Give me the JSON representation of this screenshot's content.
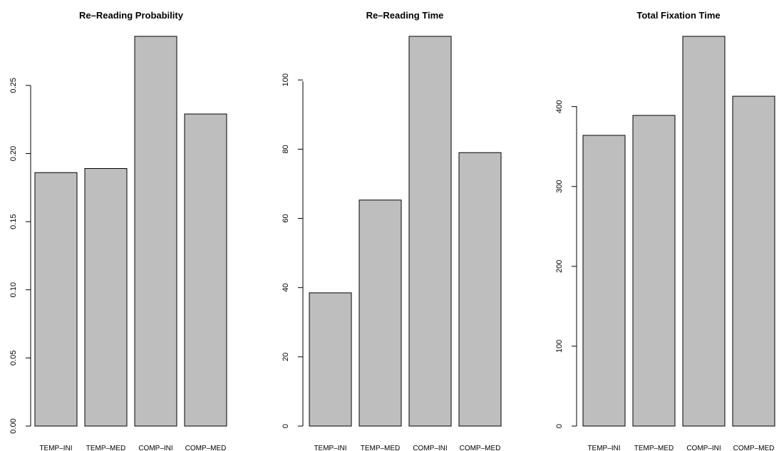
{
  "colors": {
    "bar_fill": "#bebebe",
    "bar_stroke": "#000000",
    "background": "#ffffff"
  },
  "chart_data": [
    {
      "type": "bar",
      "title": "Re–Reading Probability",
      "categories": [
        "TEMP–INI",
        "TEMP–MED",
        "COMP–INI",
        "COMP–MED"
      ],
      "values": [
        0.186,
        0.189,
        0.286,
        0.229
      ],
      "yticks": [
        0.0,
        0.05,
        0.1,
        0.15,
        0.2,
        0.25
      ],
      "ytick_labels": [
        "0.00",
        "0.05",
        "0.10",
        "0.15",
        "0.20",
        "0.25"
      ],
      "ylim": [
        0,
        0.286
      ],
      "xlabel": "",
      "ylabel": "",
      "grid": false
    },
    {
      "type": "bar",
      "title": "Re–Reading Time",
      "categories": [
        "TEMP–INI",
        "TEMP–MED",
        "COMP–INI",
        "COMP–MED"
      ],
      "values": [
        38.5,
        65.3,
        112.6,
        79.0
      ],
      "yticks": [
        0,
        20,
        40,
        60,
        80,
        100
      ],
      "ytick_labels": [
        "0",
        "20",
        "40",
        "60",
        "80",
        "100"
      ],
      "ylim": [
        0,
        112.6
      ],
      "xlabel": "",
      "ylabel": "",
      "grid": false
    },
    {
      "type": "bar",
      "title": "Total Fixation Time",
      "categories": [
        "TEMP–INI",
        "TEMP–MED",
        "COMP–INI",
        "COMP–MED"
      ],
      "values": [
        364,
        389,
        488,
        413
      ],
      "yticks": [
        0,
        100,
        200,
        300,
        400
      ],
      "ytick_labels": [
        "0",
        "100",
        "200",
        "300",
        "400"
      ],
      "ylim": [
        0,
        488
      ],
      "xlabel": "",
      "ylabel": "",
      "grid": false
    }
  ]
}
